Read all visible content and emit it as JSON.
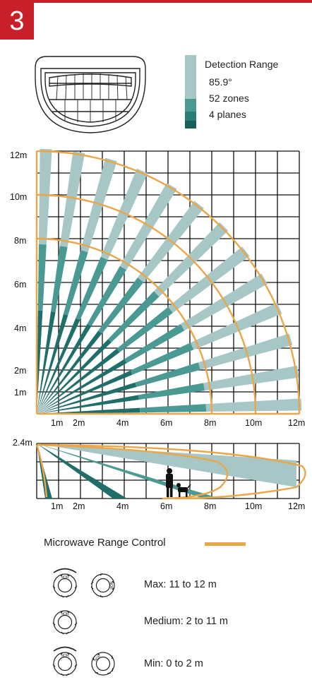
{
  "badge": {
    "number": "3"
  },
  "colors": {
    "accent_red": "#c8202a",
    "orange": "#eaa647",
    "beam_light": "#a7c7c7",
    "beam_mid": "#4a9a93",
    "beam_dark": "#1f6e6a",
    "grid": "#111111"
  },
  "legend": {
    "title": "Detection Range",
    "angle": "85.9°",
    "zones": "52 zones",
    "planes": "4 planes"
  },
  "top_view": {
    "y_ticks": [
      "12m",
      "10m",
      "8m",
      "6m",
      "4m",
      "2m",
      "1m"
    ],
    "x_ticks": [
      "1m",
      "2m",
      "4m",
      "6m",
      "8m",
      "10m",
      "12m"
    ],
    "range_arcs_m": [
      8,
      10,
      12
    ]
  },
  "side_view": {
    "height_label": "2.4m",
    "x_ticks": [
      "1m",
      "2m",
      "4m",
      "6m",
      "8m",
      "10m",
      "12m"
    ]
  },
  "microwave": {
    "title": "Microwave Range Control",
    "settings": [
      {
        "label": "Max: 11 to 12 m"
      },
      {
        "label": "Medium: 2 to 11 m"
      },
      {
        "label": "Min: 0 to 2 m"
      }
    ]
  }
}
